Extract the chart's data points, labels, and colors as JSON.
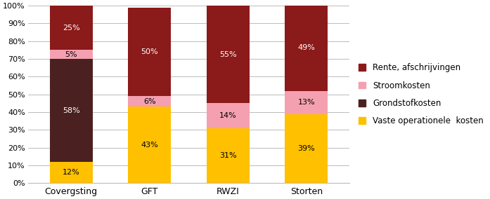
{
  "categories": [
    "Covergsting",
    "GFT",
    "RWZI",
    "Storten"
  ],
  "series": [
    {
      "name": "Vaste operationele  kosten",
      "color": "#FFC000",
      "values": [
        12,
        43,
        31,
        39
      ],
      "label_color": "#000000"
    },
    {
      "name": "Grondstofkosten",
      "color": "#4B2020",
      "values": [
        58,
        0,
        0,
        0
      ],
      "label_color": "#FFFFFF"
    },
    {
      "name": "Stroomkosten",
      "color": "#F4A0B0",
      "values": [
        5,
        6,
        14,
        13
      ],
      "label_color": "#000000"
    },
    {
      "name": "Rente, afschrijvingen",
      "color": "#8B1A1A",
      "values": [
        25,
        50,
        55,
        49
      ],
      "label_color": "#FFFFFF"
    }
  ],
  "yticks": [
    0,
    10,
    20,
    30,
    40,
    50,
    60,
    70,
    80,
    90,
    100
  ],
  "ytick_labels": [
    "0%",
    "10%",
    "20%",
    "30%",
    "40%",
    "50%",
    "60%",
    "70%",
    "80%",
    "90%",
    "100%"
  ],
  "background_color": "#FFFFFF",
  "grid_color": "#BBBBBB",
  "bar_width": 0.55,
  "figsize": [
    6.97,
    2.84
  ],
  "legend_order": [
    3,
    2,
    1,
    0
  ]
}
